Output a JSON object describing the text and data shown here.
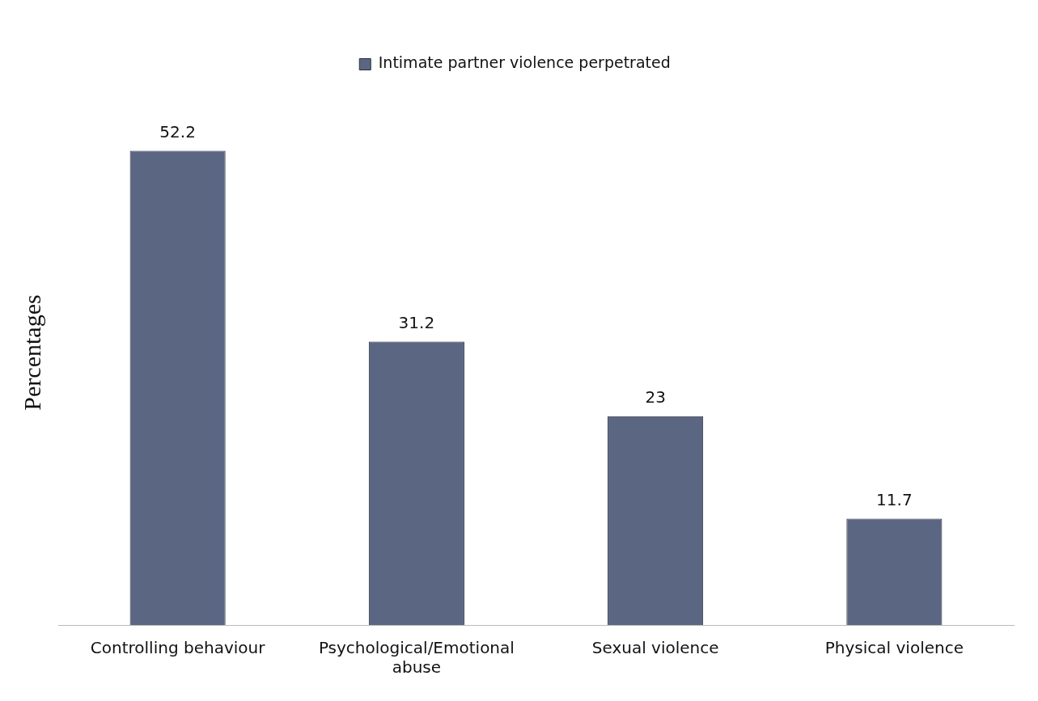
{
  "chart_data": {
    "type": "bar",
    "ylabel": "Percentages",
    "categories": [
      "Controlling behaviour",
      "Psychological/Emotional abuse",
      "Sexual violence",
      "Physical violence"
    ],
    "series": [
      {
        "name": "Intimate partner violence perpetrated",
        "color": "#5b6683",
        "values": [
          52.2,
          31.2,
          23,
          11.7
        ]
      }
    ],
    "data_labels": true,
    "legend": "top",
    "grid": false
  }
}
